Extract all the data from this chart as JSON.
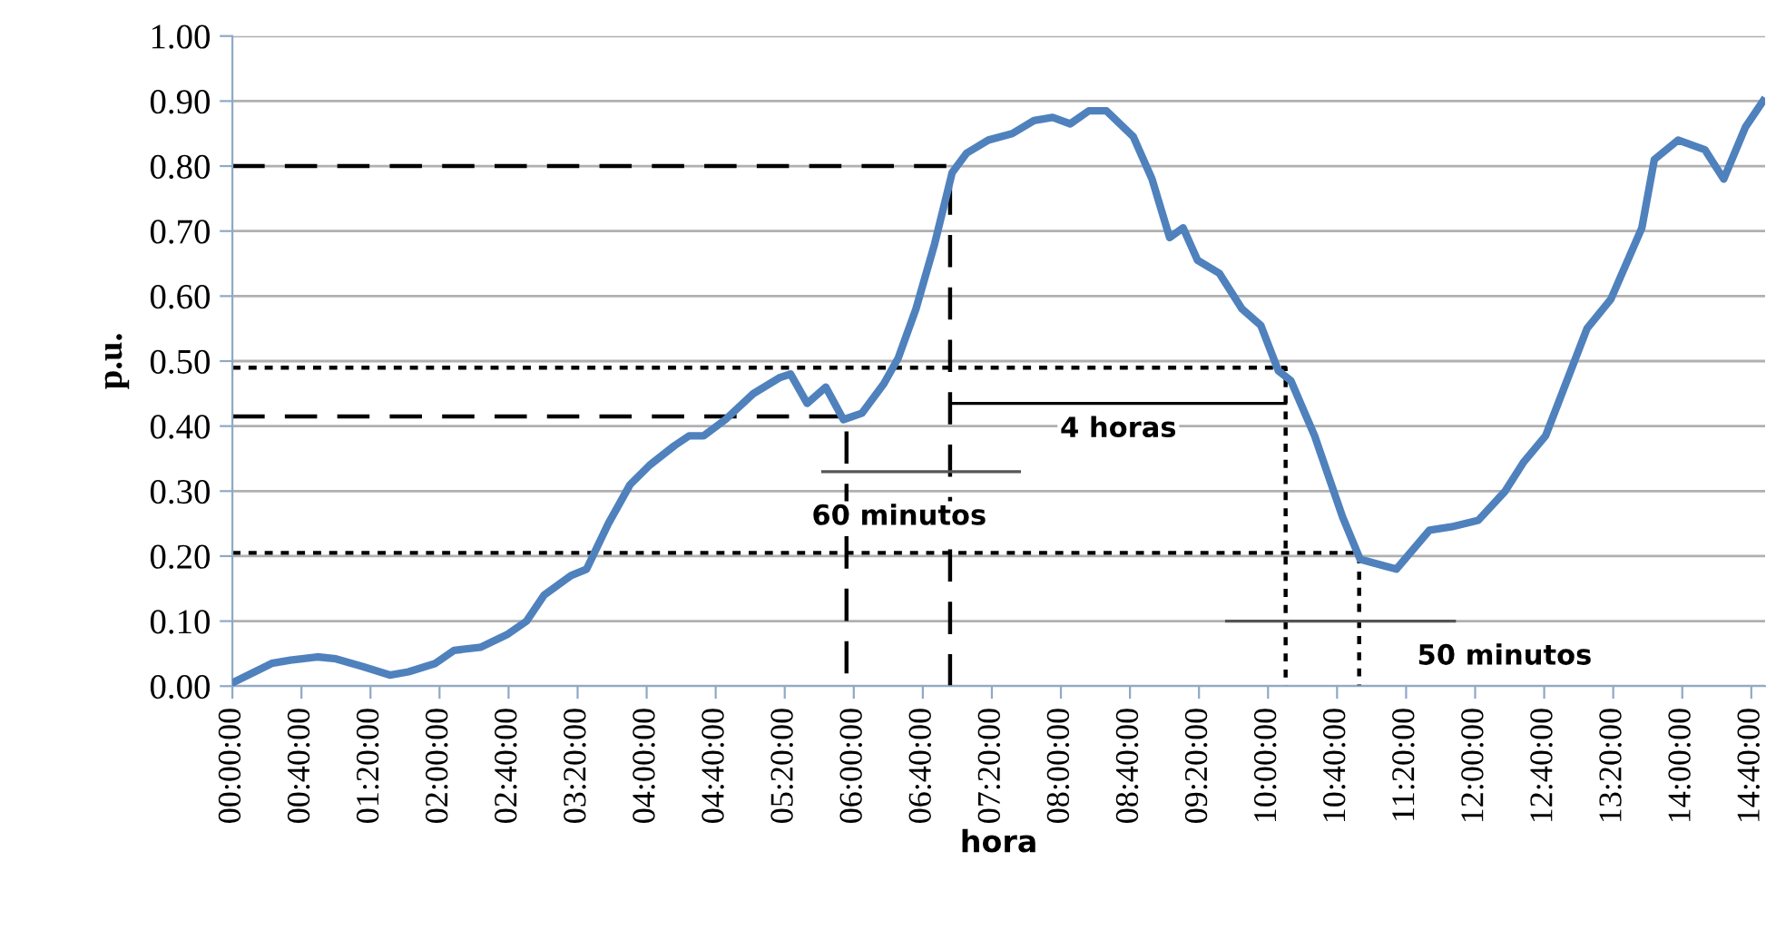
{
  "chart_data": {
    "type": "line",
    "xlabel": "hora",
    "ylabel": "p.u.",
    "xlim": [
      0,
      14.8
    ],
    "ylim": [
      0,
      1
    ],
    "xticks": [
      {
        "value": 0,
        "label": "00:00:00"
      },
      {
        "value": 0.6667,
        "label": "00:40:00"
      },
      {
        "value": 1.3333,
        "label": "01:20:00"
      },
      {
        "value": 2,
        "label": "02:00:00"
      },
      {
        "value": 2.6667,
        "label": "02:40:00"
      },
      {
        "value": 3.3333,
        "label": "03:20:00"
      },
      {
        "value": 4,
        "label": "04:00:00"
      },
      {
        "value": 4.6667,
        "label": "04:40:00"
      },
      {
        "value": 5.3333,
        "label": "05:20:00"
      },
      {
        "value": 6,
        "label": "06:00:00"
      },
      {
        "value": 6.6667,
        "label": "06:40:00"
      },
      {
        "value": 7.3333,
        "label": "07:20:00"
      },
      {
        "value": 8,
        "label": "08:00:00"
      },
      {
        "value": 8.6667,
        "label": "08:40:00"
      },
      {
        "value": 9.3333,
        "label": "09:20:00"
      },
      {
        "value": 10,
        "label": "10:00:00"
      },
      {
        "value": 10.6667,
        "label": "10:40:00"
      },
      {
        "value": 11.3333,
        "label": "11:20:00"
      },
      {
        "value": 12,
        "label": "12:00:00"
      },
      {
        "value": 12.6667,
        "label": "12:40:00"
      },
      {
        "value": 13.3333,
        "label": "13:20:00"
      },
      {
        "value": 14,
        "label": "14:00:00"
      },
      {
        "value": 14.6667,
        "label": "14:40:00"
      }
    ],
    "yticks": [
      {
        "value": 0,
        "label": "0.00"
      },
      {
        "value": 0.1,
        "label": "0.10"
      },
      {
        "value": 0.2,
        "label": "0.20"
      },
      {
        "value": 0.3,
        "label": "0.30"
      },
      {
        "value": 0.4,
        "label": "0.40"
      },
      {
        "value": 0.5,
        "label": "0.50"
      },
      {
        "value": 0.6,
        "label": "0.60"
      },
      {
        "value": 0.7,
        "label": "0.70"
      },
      {
        "value": 0.8,
        "label": "0.80"
      },
      {
        "value": 0.9,
        "label": "0.90"
      },
      {
        "value": 1,
        "label": "1.00"
      }
    ],
    "grid": "y",
    "legend": false,
    "series": [
      {
        "color": "#4f81bd",
        "line_style": "solid",
        "x": [
          0,
          0.38,
          0.56,
          0.82,
          1.0,
          1.26,
          1.52,
          1.7,
          1.96,
          2.14,
          2.4,
          2.66,
          2.84,
          3.01,
          3.27,
          3.42,
          3.63,
          3.84,
          4.03,
          4.27,
          4.41,
          4.55,
          4.76,
          5.03,
          5.29,
          5.39,
          5.55,
          5.73,
          5.9,
          6.08,
          6.29,
          6.43,
          6.6,
          6.78,
          6.95,
          7.09,
          7.3,
          7.53,
          7.74,
          7.92,
          8.09,
          8.27,
          8.44,
          8.7,
          8.88,
          9.05,
          9.18,
          9.32,
          9.53,
          9.75,
          9.93,
          10.1,
          10.22,
          10.45,
          10.72,
          10.89,
          11.24,
          11.56,
          11.77,
          12.03,
          12.29,
          12.47,
          12.68,
          12.85,
          13.08,
          13.31,
          13.61,
          13.73,
          13.96,
          14.22,
          14.4,
          14.61,
          14.78
        ],
        "values": [
          0.005,
          0.035,
          0.04,
          0.045,
          0.042,
          0.03,
          0.017,
          0.022,
          0.035,
          0.055,
          0.06,
          0.08,
          0.1,
          0.14,
          0.17,
          0.18,
          0.25,
          0.31,
          0.34,
          0.37,
          0.385,
          0.385,
          0.41,
          0.45,
          0.475,
          0.48,
          0.435,
          0.46,
          0.41,
          0.42,
          0.465,
          0.505,
          0.58,
          0.68,
          0.79,
          0.82,
          0.84,
          0.85,
          0.87,
          0.875,
          0.865,
          0.885,
          0.885,
          0.845,
          0.78,
          0.69,
          0.705,
          0.655,
          0.635,
          0.58,
          0.555,
          0.485,
          0.47,
          0.385,
          0.26,
          0.195,
          0.18,
          0.24,
          0.245,
          0.255,
          0.3,
          0.345,
          0.385,
          0.455,
          0.55,
          0.595,
          0.705,
          0.81,
          0.84,
          0.825,
          0.78,
          0.86,
          0.9
        ]
      },
      {
        "color": "#000000",
        "line_style": "dashed",
        "x": [
          0,
          6.93,
          6.93
        ],
        "values": [
          0.8,
          0.8,
          0
        ]
      },
      {
        "color": "#000000",
        "line_style": "dashed",
        "x": [
          0,
          5.93,
          5.93
        ],
        "values": [
          0.415,
          0.415,
          0
        ]
      },
      {
        "color": "#000000",
        "line_style": "dotted",
        "x": [
          0,
          10.17,
          10.17
        ],
        "values": [
          0.49,
          0.49,
          0
        ]
      },
      {
        "color": "#000000",
        "line_style": "dotted",
        "x": [
          0,
          10.88,
          10.88
        ],
        "values": [
          0.205,
          0.205,
          0
        ]
      },
      {
        "color": "#000000",
        "line_style": "solid",
        "x": [
          6.93,
          10.17
        ],
        "values": [
          0.435,
          0.435
        ]
      },
      {
        "color": "#555555",
        "line_style": "solid",
        "x": [
          5.7,
          7.6
        ],
        "values": [
          0.33,
          0.33
        ]
      },
      {
        "color": "#555555",
        "line_style": "solid",
        "x": [
          9.6,
          11.8
        ],
        "values": [
          0.1,
          0.1
        ]
      }
    ],
    "annotations": [
      "60 minutos",
      "4 horas",
      "50 minutos"
    ]
  }
}
